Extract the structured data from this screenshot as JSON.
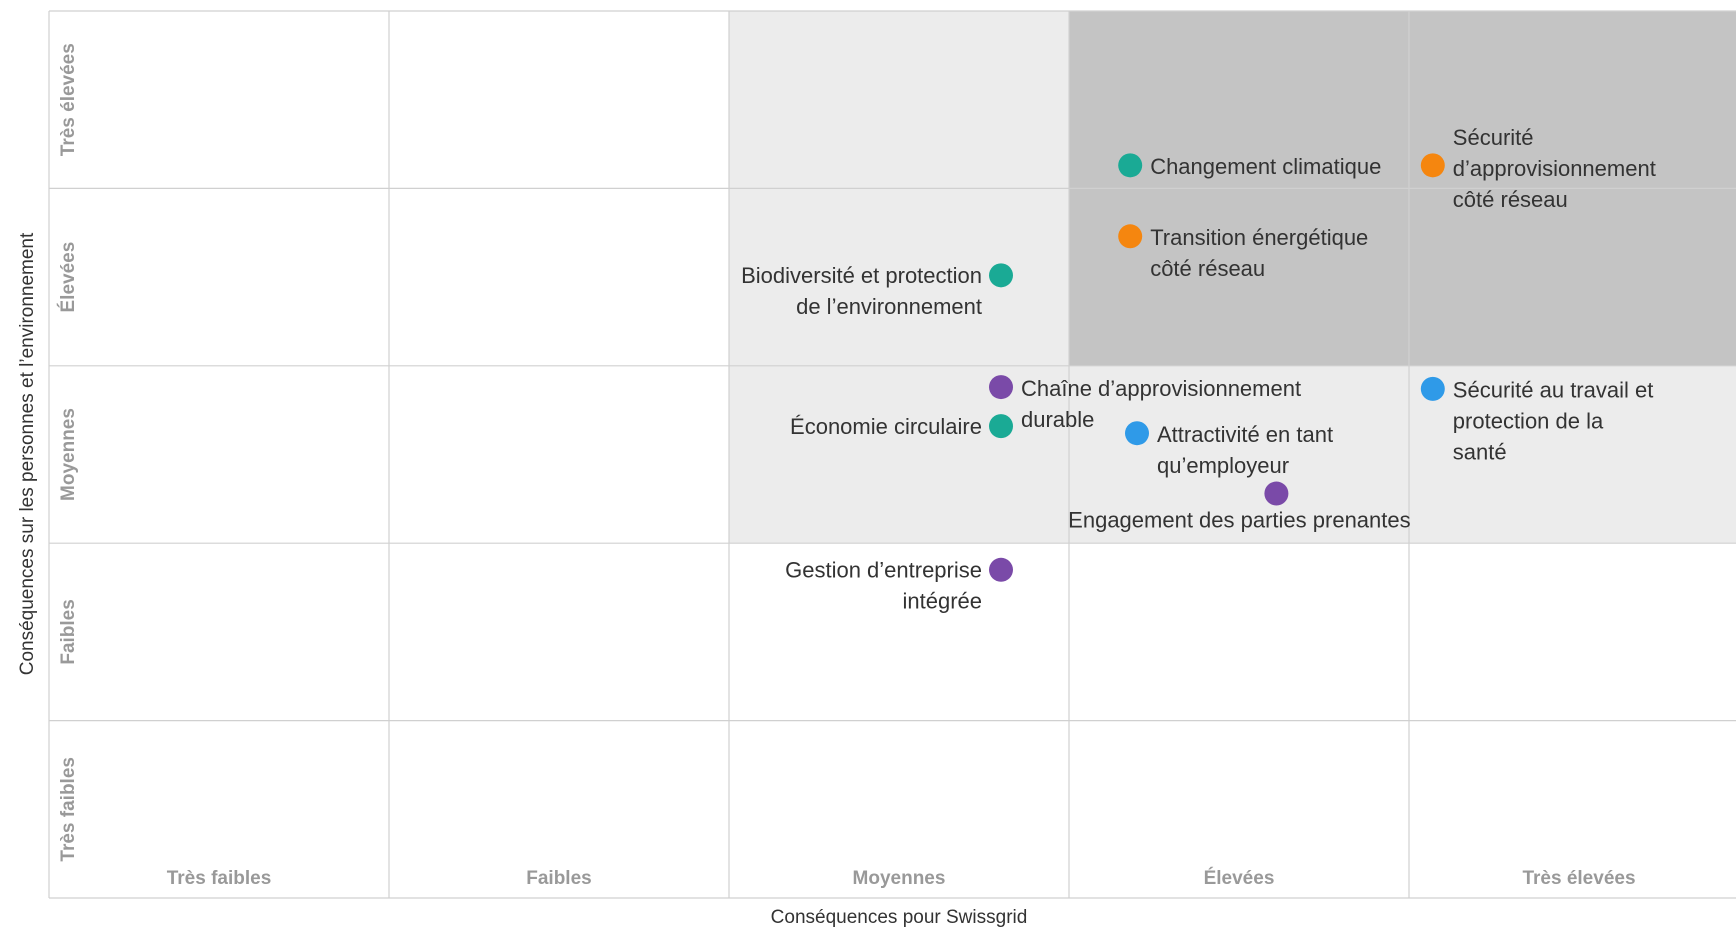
{
  "chart_data": {
    "type": "scatter",
    "xlabel": "Conséquences pour Swissgrid",
    "ylabel": "Conséquences sur les personnes et l’environnement",
    "xlim": [
      0,
      5
    ],
    "ylim": [
      0,
      5
    ],
    "xticks": [
      {
        "value": 0.5,
        "label": "Très faibles"
      },
      {
        "value": 1.5,
        "label": "Faibles"
      },
      {
        "value": 2.5,
        "label": "Moyennes"
      },
      {
        "value": 3.5,
        "label": "Élevées"
      },
      {
        "value": 4.5,
        "label": "Très élevées"
      }
    ],
    "yticks": [
      {
        "value": 0.5,
        "label": "Très faibles"
      },
      {
        "value": 1.5,
        "label": "Faibles"
      },
      {
        "value": 2.5,
        "label": "Moyennes"
      },
      {
        "value": 3.5,
        "label": "Élevées"
      },
      {
        "value": 4.5,
        "label": "Très élevées"
      }
    ],
    "labels": [
      [
        "Changement climatique"
      ],
      [
        "Sécurité",
        "d’approvisionnement",
        "côté réseau"
      ],
      [
        "Transition énergétique",
        "côté réseau"
      ],
      [
        "Biodiversité et protection",
        "de l’environnement"
      ],
      [
        "Chaîne d’approvisionnement",
        "durable"
      ],
      [
        "Économie circulaire"
      ],
      [
        "Attractivité en tant",
        "qu’employeur"
      ],
      [
        "Sécurité au travail et",
        "protection de la",
        "santé"
      ],
      [
        "Engagement des parties prenantes"
      ],
      [
        "Gestion d’entreprise",
        "intégrée"
      ]
    ],
    "x": [
      3.18,
      4.07,
      3.18,
      2.8,
      2.8,
      2.8,
      3.2,
      4.07,
      3.61,
      2.8
    ],
    "y": [
      4.13,
      4.13,
      3.73,
      3.51,
      2.88,
      2.66,
      2.62,
      2.87,
      2.28,
      1.85
    ],
    "colors": [
      "#1aaa95",
      "#f5860f",
      "#f5860f",
      "#1aaa95",
      "#7a4aa8",
      "#1aaa95",
      "#2f9ae8",
      "#2f9ae8",
      "#7a4aa8",
      "#7a4aa8"
    ]
  }
}
